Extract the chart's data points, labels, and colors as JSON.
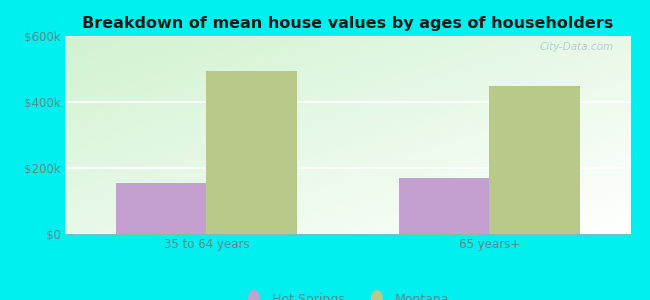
{
  "title": "Breakdown of mean house values by ages of householders",
  "categories": [
    "35 to 64 years",
    "65 years+"
  ],
  "series": {
    "Hot Springs": [
      155000,
      170000
    ],
    "Montana": [
      495000,
      450000
    ]
  },
  "colors": {
    "Hot Springs": "#c4a0d0",
    "Montana": "#b8c98a"
  },
  "ylim": [
    0,
    600000
  ],
  "yticks": [
    0,
    200000,
    400000,
    600000
  ],
  "ytick_labels": [
    "$0",
    "$200k",
    "$400k",
    "$600k"
  ],
  "bar_width": 0.32,
  "background_color": "#00f0f0",
  "title_fontsize": 11.5,
  "legend_fontsize": 9,
  "tick_fontsize": 8.5,
  "tick_color": "#5a8888",
  "watermark": "City-Data.com"
}
